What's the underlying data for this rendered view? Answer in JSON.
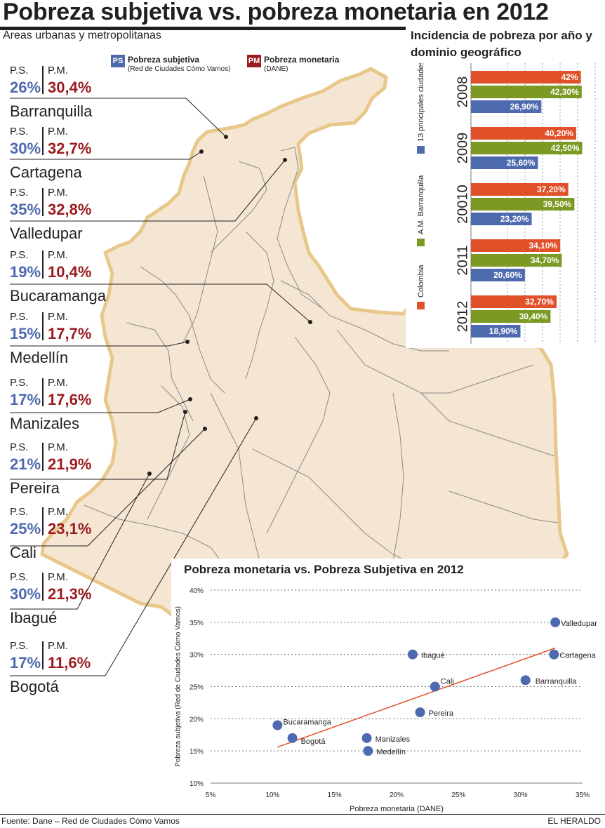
{
  "header": {
    "title": "Pobreza subjetiva vs. pobreza monetaria en 2012",
    "subtitle": "Áreas urbanas y metropolitanas"
  },
  "legend": {
    "ps_badge": "PS",
    "ps_title": "Pobreza subjetiva",
    "ps_source": "(Red de Ciudades Cómo Vamos)",
    "pm_badge": "PM",
    "pm_title": "Pobreza monetaria",
    "pm_source": "(DANE)",
    "ps_color": "#4e6aae",
    "pm_color": "#9b1b1f"
  },
  "labels": {
    "ps": "P.S.",
    "pm": "P.M."
  },
  "cities": [
    {
      "name": "Barranquilla",
      "ps": "26%",
      "pm": "30,4%"
    },
    {
      "name": "Cartagena",
      "ps": "30%",
      "pm": "32,7%"
    },
    {
      "name": "Valledupar",
      "ps": "35%",
      "pm": "32,8%"
    },
    {
      "name": "Bucaramanga",
      "ps": "19%",
      "pm": "10,4%"
    },
    {
      "name": "Medellín",
      "ps": "15%",
      "pm": "17,7%"
    },
    {
      "name": "Manizales",
      "ps": "17%",
      "pm": "17,6%"
    },
    {
      "name": "Pereira",
      "ps": "21%",
      "pm": "21,9%"
    },
    {
      "name": "Cali",
      "ps": "25%",
      "pm": "23,1%"
    },
    {
      "name": "Ibagué",
      "ps": "30%",
      "pm": "21,3%"
    },
    {
      "name": "Bogotá",
      "ps": "17%",
      "pm": "11,6%"
    }
  ],
  "footer": {
    "source": "Fuente: Dane – Red de Ciudades Cómo Vamos",
    "brand": "EL HERALDO"
  },
  "map": {
    "fill": "#f5e6d3",
    "border": "#e8c88a",
    "lines": "#7a7a7a"
  },
  "chart_data": [
    {
      "type": "bar",
      "orientation": "horizontal",
      "title": "Incidencia de pobreza por año y dominio geográfico",
      "categories": [
        "2008",
        "2009",
        "20010",
        "2011",
        "2012"
      ],
      "series": [
        {
          "name": "Colombia",
          "color": "#e0512a",
          "values": [
            42,
            40.2,
            37.2,
            34.1,
            32.7
          ],
          "labels": [
            "42%",
            "40,20%",
            "37,20%",
            "34,10%",
            "32,70%"
          ]
        },
        {
          "name": "A.M. Barranquilla",
          "color": "#7c9a23",
          "values": [
            42.3,
            42.5,
            39.5,
            34.7,
            30.4
          ],
          "labels": [
            "42,30%",
            "42,50%",
            "39,50%",
            "34,70%",
            "30,40%"
          ]
        },
        {
          "name": "13 principales ciudades",
          "color": "#4e6aae",
          "values": [
            26.9,
            25.6,
            23.2,
            20.6,
            18.9
          ],
          "labels": [
            "26,90%",
            "25,60%",
            "23,20%",
            "20,60%",
            "18,90%"
          ]
        }
      ],
      "legend_position": "left, rotated",
      "grid": true
    },
    {
      "type": "scatter",
      "title": "Pobreza monetaria vs. Pobreza Subjetiva en 2012",
      "xlabel": "Pobreza monetaria (DANE)",
      "ylabel": "Pobreza subjetiva (Red de Ciudades Cómo Vamos)",
      "xlim": [
        5,
        35
      ],
      "ylim": [
        10,
        40
      ],
      "xticks": [
        "5%",
        "10%",
        "15%",
        "20%",
        "25%",
        "30%",
        "35%"
      ],
      "yticks": [
        "10%",
        "15%",
        "20%",
        "25%",
        "30%",
        "35%",
        "40%"
      ],
      "grid": true,
      "point_color": "#4e6aae",
      "trend_color": "#e0512a",
      "trendline": {
        "x": [
          10.4,
          32.8
        ],
        "y": [
          15.6,
          31.0
        ]
      },
      "points": [
        {
          "label": "Valledupar",
          "x": 32.8,
          "y": 35
        },
        {
          "label": "Ibagué",
          "x": 21.3,
          "y": 30
        },
        {
          "label": "Cartagena",
          "x": 32.7,
          "y": 30
        },
        {
          "label": "Cali",
          "x": 23.1,
          "y": 25
        },
        {
          "label": "Barranquilla",
          "x": 30.4,
          "y": 26
        },
        {
          "label": "Pereira",
          "x": 21.9,
          "y": 21
        },
        {
          "label": "Bucaramanga",
          "x": 10.4,
          "y": 19
        },
        {
          "label": "Bogotá",
          "x": 11.6,
          "y": 17
        },
        {
          "label": "Manizales",
          "x": 17.6,
          "y": 17
        },
        {
          "label": "Medellín",
          "x": 17.7,
          "y": 15
        }
      ]
    }
  ]
}
